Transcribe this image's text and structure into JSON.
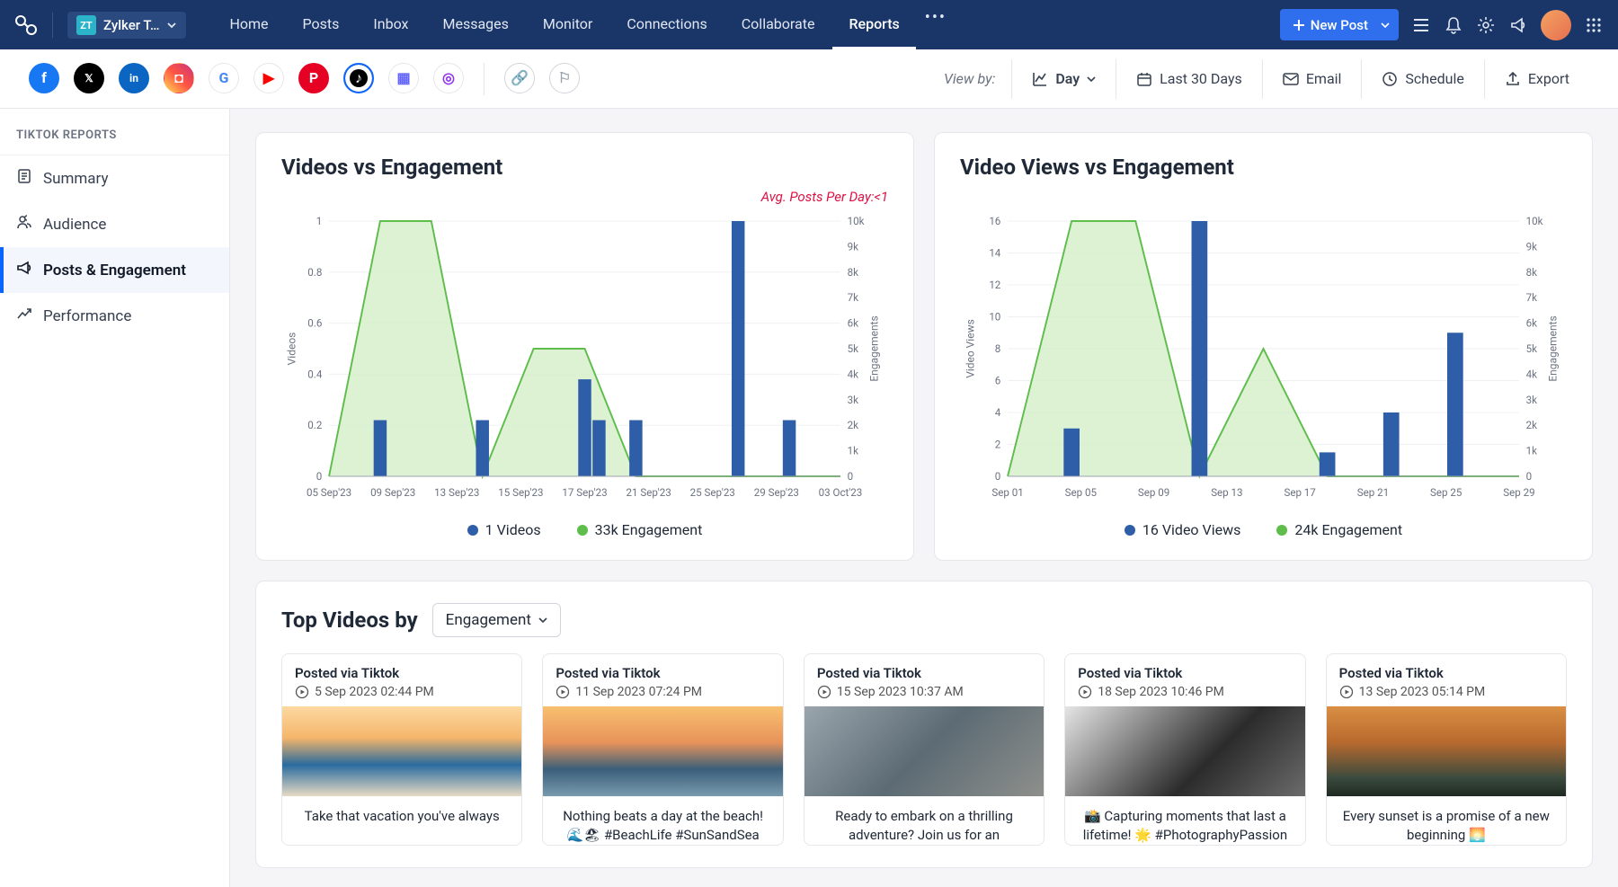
{
  "topbar": {
    "brand": "Zylker T…",
    "nav": [
      "Home",
      "Posts",
      "Inbox",
      "Messages",
      "Monitor",
      "Connections",
      "Collaborate",
      "Reports"
    ],
    "nav_active_index": 7,
    "new_post": "New Post"
  },
  "channelbar": {
    "view_by_label": "View by:",
    "view_by_value": "Day",
    "range": "Last 30 Days",
    "email": "Email",
    "schedule": "Schedule",
    "export": "Export",
    "channels": [
      {
        "name": "facebook",
        "bg": "#1877f2",
        "fg": "#fff",
        "glyph": "f"
      },
      {
        "name": "x",
        "bg": "#000",
        "fg": "#fff",
        "glyph": "𝕏"
      },
      {
        "name": "linkedin",
        "bg": "#0a66c2",
        "fg": "#fff",
        "glyph": "in"
      },
      {
        "name": "instagram",
        "bg": "linear-gradient(45deg,#fd5,#f54,#c37)",
        "fg": "#fff",
        "glyph": "◘"
      },
      {
        "name": "google",
        "bg": "#fff",
        "fg": "#4285f4",
        "glyph": "G",
        "border": "#e5e7eb"
      },
      {
        "name": "youtube",
        "bg": "#fff",
        "fg": "#ff0000",
        "glyph": "▶",
        "border": "#e5e7eb"
      },
      {
        "name": "pinterest",
        "bg": "#e60023",
        "fg": "#fff",
        "glyph": "P"
      },
      {
        "name": "tiktok",
        "bg": "#000",
        "fg": "#fff",
        "glyph": "♪",
        "active": true
      },
      {
        "name": "mastodon",
        "bg": "#fff",
        "fg": "#6364ff",
        "glyph": "▦",
        "border": "#e5e7eb"
      },
      {
        "name": "threads",
        "bg": "#fff",
        "fg": "#9333ea",
        "glyph": "◎",
        "border": "#e5e7eb"
      }
    ],
    "extra_channels": [
      {
        "name": "link",
        "glyph": "🔗"
      },
      {
        "name": "flag",
        "glyph": "⚐"
      }
    ]
  },
  "sidebar": {
    "title": "TIKTOK REPORTS",
    "items": [
      {
        "label": "Summary",
        "icon": "document"
      },
      {
        "label": "Audience",
        "icon": "users"
      },
      {
        "label": "Posts & Engagement",
        "icon": "megaphone",
        "active": true
      },
      {
        "label": "Performance",
        "icon": "trend"
      }
    ]
  },
  "chart1": {
    "title": "Videos vs Engagement",
    "subtitle": "Avg. Posts Per Day:<1",
    "type": "combo-bar-area",
    "x_labels": [
      "05 Sep'23",
      "09 Sep'23",
      "13 Sep'23",
      "15 Sep'23",
      "17 Sep'23",
      "21 Sep'23",
      "25 Sep'23",
      "29 Sep'23",
      "03 Oct'23"
    ],
    "left_axis": {
      "label": "Videos",
      "min": 0,
      "max": 1,
      "step": 0.2
    },
    "right_axis": {
      "label": "Engagements",
      "min": 0,
      "max": 10000,
      "step": 1000,
      "tick_labels": [
        "10k",
        "9k",
        "8k",
        "7k",
        "6k",
        "5k",
        "4k",
        "3k",
        "2k",
        "1k",
        "0"
      ]
    },
    "bars": {
      "color": "#2f5ea8",
      "values": [
        0,
        0.22,
        0,
        0.22,
        0,
        0.38,
        0.22,
        0,
        1.0,
        0.22,
        0
      ]
    },
    "bars_secondary": {
      "color": "#2f5ea8",
      "offsets": [
        0,
        0,
        0,
        0,
        0,
        0.22,
        0,
        0,
        0,
        0,
        0
      ]
    },
    "area": {
      "color": "#5fbd4c",
      "fill": "#d3efc8",
      "values": [
        0,
        1.0,
        1.0,
        0,
        0.5,
        0.5,
        0,
        0,
        0,
        0,
        0
      ]
    },
    "legend": [
      {
        "label": "1 Videos",
        "color": "#2f5ea8"
      },
      {
        "label": "33k Engagement",
        "color": "#5fbd4c"
      }
    ]
  },
  "chart2": {
    "title": "Video Views vs Engagement",
    "type": "combo-bar-area",
    "x_labels": [
      "Sep 01",
      "Sep 05",
      "Sep 09",
      "Sep 13",
      "Sep 17",
      "Sep 21",
      "Sep 25",
      "Sep 29"
    ],
    "left_axis": {
      "label": "Video Views",
      "min": 0,
      "max": 16,
      "step": 2
    },
    "right_axis": {
      "label": "Engagements",
      "min": 0,
      "max": 10000,
      "step": 1000,
      "tick_labels": [
        "10k",
        "9k",
        "8k",
        "7k",
        "6k",
        "5k",
        "4k",
        "3k",
        "2k",
        "1k",
        "0"
      ]
    },
    "bars": {
      "color": "#2f5ea8",
      "values": [
        0,
        3,
        0,
        16,
        0,
        1.5,
        4,
        9,
        0
      ]
    },
    "area": {
      "color": "#5fbd4c",
      "fill": "#d3efc8",
      "values": [
        0,
        16,
        16,
        0,
        8,
        0,
        0,
        0,
        0
      ]
    },
    "legend": [
      {
        "label": "16 Video Views",
        "color": "#2f5ea8"
      },
      {
        "label": "24k Engagement",
        "color": "#5fbd4c"
      }
    ]
  },
  "top_videos": {
    "title": "Top Videos by",
    "dropdown": "Engagement",
    "cards": [
      {
        "source": "Posted via Tiktok",
        "time": "5 Sep 2023 02:44 PM",
        "img_gradient": "linear-gradient(180deg,#fcd9a0 0%,#f5b56b 35%,#2a6b9e 65%,#e7dbc4 100%)",
        "caption": "Take that vacation you've always"
      },
      {
        "source": "Posted via Tiktok",
        "time": "11 Sep 2023 07:24 PM",
        "img_gradient": "linear-gradient(180deg,#f8c070 0%,#e8935a 40%,#3a5f7a 70%,#7a9aad 100%)",
        "caption": "Nothing beats a day at the beach! 🌊🏖 #BeachLife #SunSandSea"
      },
      {
        "source": "Posted via Tiktok",
        "time": "15 Sep 2023 10:37 AM",
        "img_gradient": "linear-gradient(135deg,#9aa5ad 0%,#5c6b74 50%,#8d8f8b 100%)",
        "caption": "Ready to embark on a thrilling adventure? Join us for an"
      },
      {
        "source": "Posted via Tiktok",
        "time": "18 Sep 2023 10:46 PM",
        "img_gradient": "linear-gradient(135deg,#e5e5e5 0%,#2b2b2b 60%,#6b6b6b 100%)",
        "caption": "📸 Capturing moments that last a lifetime! 🌟 #PhotographyPassion"
      },
      {
        "source": "Posted via Tiktok",
        "time": "13 Sep 2023 05:14 PM",
        "img_gradient": "linear-gradient(180deg,#d98f44 0%,#b86a2e 40%,#3a4a3e 80%,#1f2a22 100%)",
        "caption": "Every sunset is a promise of a new beginning 🌅"
      }
    ]
  },
  "colors": {
    "topbar_bg": "#1a3668",
    "accent": "#0b66ff",
    "card_border": "#e5e7eb"
  }
}
